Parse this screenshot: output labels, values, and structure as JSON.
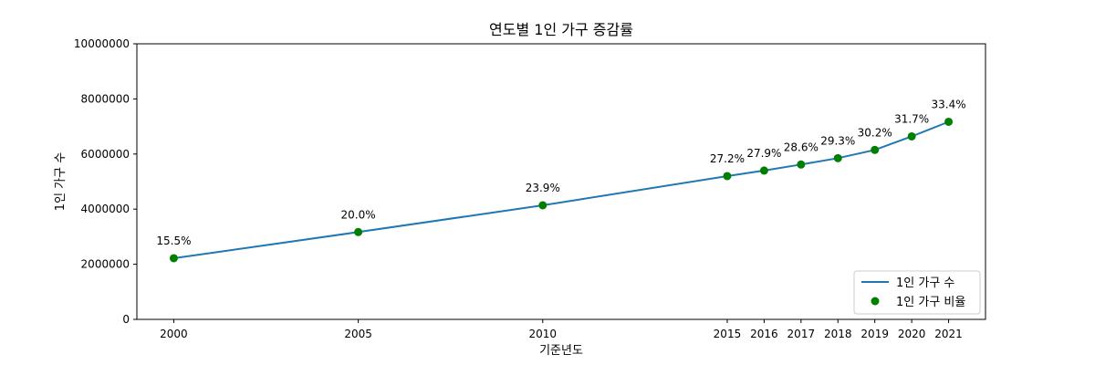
{
  "chart_data": {
    "type": "line",
    "title": "연도별 1인 가구 증감률",
    "xlabel": "기준년도",
    "ylabel": "1인 가구 수",
    "x": [
      2000,
      2005,
      2010,
      2015,
      2016,
      2017,
      2018,
      2019,
      2020,
      2021
    ],
    "x_tick_labels": [
      "2000",
      "2005",
      "2010",
      "2015",
      "2016",
      "2017",
      "2018",
      "2019",
      "2020",
      "2021"
    ],
    "y_ticks": [
      0,
      2000000,
      4000000,
      6000000,
      8000000,
      10000000
    ],
    "y_tick_labels": [
      "0",
      "2000000",
      "4000000",
      "6000000",
      "8000000",
      "10000000"
    ],
    "ylim": [
      0,
      10000000
    ],
    "xlim": [
      1999,
      2022
    ],
    "series": [
      {
        "name": "1인 가구 수",
        "kind": "line",
        "color": "#1f77b4",
        "values": [
          2220000,
          3170000,
          4140000,
          5200000,
          5400000,
          5620000,
          5850000,
          6150000,
          6640000,
          7170000
        ]
      },
      {
        "name": "1인 가구 비율",
        "kind": "scatter",
        "color": "#008000",
        "values": [
          2220000,
          3170000,
          4140000,
          5200000,
          5400000,
          5620000,
          5850000,
          6150000,
          6640000,
          7170000
        ]
      }
    ],
    "annotations": [
      "15.5%",
      "20.0%",
      "23.9%",
      "27.2%",
      "27.9%",
      "28.6%",
      "29.3%",
      "30.2%",
      "31.7%",
      "33.4%"
    ],
    "legend": {
      "position": "lower-right",
      "entries": [
        "1인 가구 수",
        "1인 가구 비율"
      ]
    },
    "grid": false
  }
}
